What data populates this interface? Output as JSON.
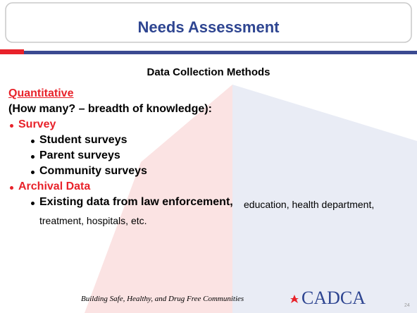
{
  "title": "Needs Assessment",
  "subtitle": "Data Collection Methods",
  "heading": "Quantitative",
  "intro": "(How many? – breadth of knowledge):",
  "items": [
    {
      "label": "Survey",
      "children": [
        "Student surveys",
        "Parent surveys",
        "Community surveys"
      ]
    },
    {
      "label": "Archival Data",
      "children": [
        {
          "strong": "Existing data from law enforcement,",
          "text": "education, health department, treatment, hospitals, etc."
        }
      ]
    }
  ],
  "footer": {
    "tagline": "Building Safe, Healthy, and Drug Free Communities",
    "logo": "CADCA",
    "page": "24"
  }
}
